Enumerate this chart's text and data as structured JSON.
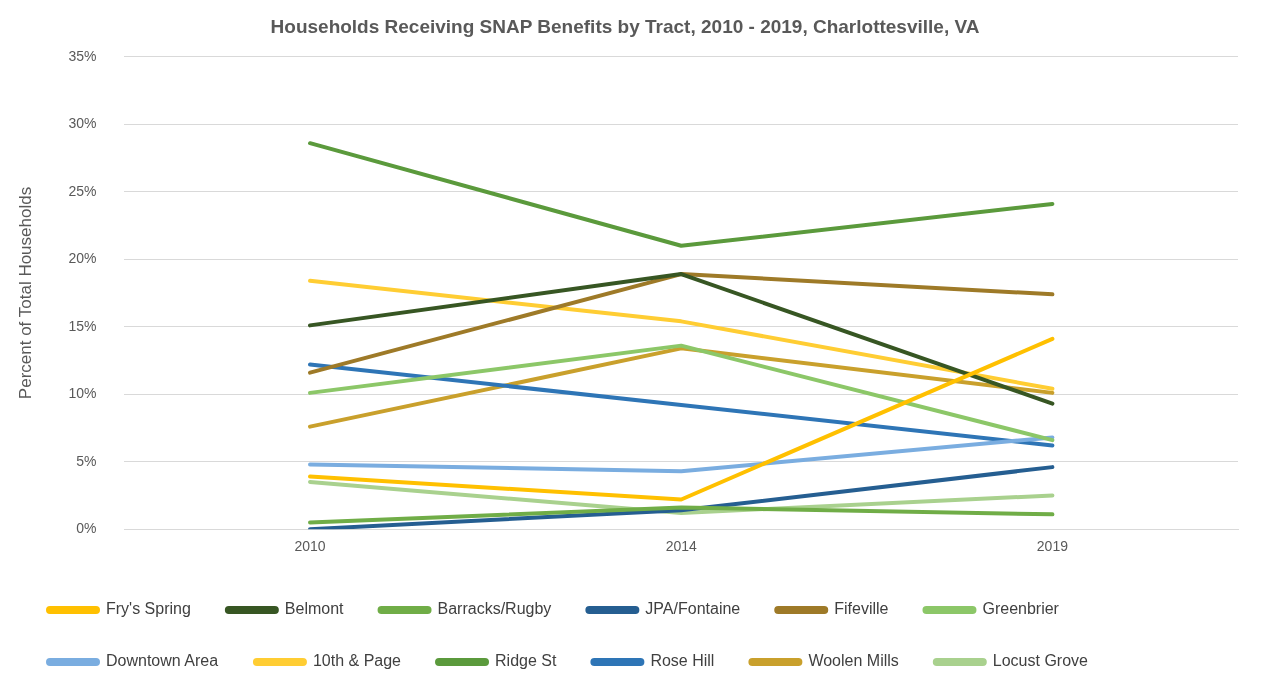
{
  "chart_data": {
    "type": "line",
    "title": "Households Receiving SNAP Benefits by Tract, 2010 - 2019, Charlottesville, VA",
    "ylabel": "Percent of Total Households",
    "categories": [
      "2010",
      "2014",
      "2019"
    ],
    "ylim": [
      0,
      35
    ],
    "yticks": [
      {
        "value": 0,
        "label": "0%"
      },
      {
        "value": 5,
        "label": "5%"
      },
      {
        "value": 10,
        "label": "10%"
      },
      {
        "value": 15,
        "label": "15%"
      },
      {
        "value": 20,
        "label": "20%"
      },
      {
        "value": 25,
        "label": "25%"
      },
      {
        "value": 30,
        "label": "30%"
      },
      {
        "value": 35,
        "label": "35%"
      }
    ],
    "grid": "y",
    "legend": "bottom",
    "marker": "none",
    "series": [
      {
        "name": "Fry's Spring",
        "color": "#ffc000",
        "values": [
          3.9,
          2.2,
          14.1
        ]
      },
      {
        "name": "Belmont",
        "color": "#375623",
        "values": [
          15.1,
          18.9,
          9.3
        ]
      },
      {
        "name": "Barracks/Rugby",
        "color": "#70ad47",
        "values": [
          0.5,
          1.6,
          1.1
        ]
      },
      {
        "name": "JPA/Fontaine",
        "color": "#255e91",
        "values": [
          0,
          1.4,
          4.6
        ]
      },
      {
        "name": "Fifeville",
        "color": "#9e7a28",
        "values": [
          11.6,
          18.9,
          17.4
        ]
      },
      {
        "name": "Greenbrier",
        "color": "#8cc768",
        "values": [
          10.1,
          13.6,
          6.6
        ]
      },
      {
        "name": "Downtown Area",
        "color": "#7aade0",
        "values": [
          4.8,
          4.3,
          6.8
        ]
      },
      {
        "name": "10th & Page",
        "color": "#ffcd33",
        "values": [
          18.4,
          15.4,
          10.4
        ]
      },
      {
        "name": "Ridge St",
        "color": "#5b9a3c",
        "values": [
          28.6,
          21.0,
          24.1
        ]
      },
      {
        "name": "Rose Hill",
        "color": "#2e75b6",
        "values": [
          12.2,
          9.2,
          6.2
        ]
      },
      {
        "name": "Woolen Mills",
        "color": "#c9a02c",
        "values": [
          7.6,
          13.4,
          10.1
        ]
      },
      {
        "name": "Locust Grove",
        "color": "#a9d18e",
        "values": [
          3.5,
          1.2,
          2.5
        ]
      }
    ]
  }
}
